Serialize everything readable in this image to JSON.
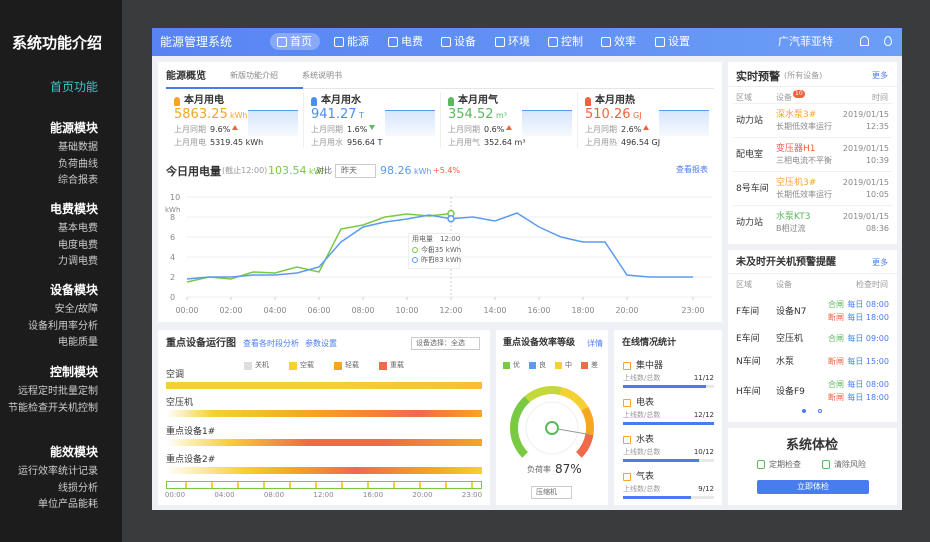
{
  "sidebar": {
    "title": "系统功能介绍",
    "home": "首页功能",
    "groups": [
      {
        "title": "能源模块",
        "items": [
          "基础数据",
          "负荷曲线",
          "综合报表"
        ]
      },
      {
        "title": "电费模块",
        "items": [
          "基本电费",
          "电度电费",
          "力调电费"
        ]
      },
      {
        "title": "设备模块",
        "items": [
          "安全/故障",
          "设备利用率分析",
          "电能质量"
        ]
      },
      {
        "title": "控制模块",
        "items": [
          "远程定时批量定制",
          "节能检查开关机控制"
        ]
      },
      {
        "title": "能效模块",
        "items": [
          "运行效率统计记录",
          "线损分析",
          "单位产品能耗"
        ]
      }
    ]
  },
  "topbar": {
    "app": "能源管理系统",
    "nav": [
      "首页",
      "能源",
      "电费",
      "设备",
      "环境",
      "控制",
      "效率",
      "设置"
    ],
    "company": "广汽菲亚特"
  },
  "overview": {
    "tabs": [
      "能源概览",
      "新版功能介绍",
      "系统说明书"
    ],
    "cards": [
      {
        "title": "本月用电",
        "value": "5863.25",
        "unit": "kWh",
        "cmp_label": "上月同期",
        "cmp": "9.6%",
        "trend": "up",
        "last_label": "上月用电",
        "last": "5319.45 kWh",
        "color": "#f5a623"
      },
      {
        "title": "本月用水",
        "value": "941.27",
        "unit": "T",
        "cmp_label": "上月同期",
        "cmp": "1.6%",
        "trend": "down",
        "last_label": "上月用水",
        "last": "956.64 T",
        "color": "#4a8ff0"
      },
      {
        "title": "本月用气",
        "value": "354.52",
        "unit": "m³",
        "cmp_label": "上月同期",
        "cmp": "0.6%",
        "trend": "up",
        "last_label": "上月用气",
        "last": "352.64 m³",
        "color": "#5cb85c"
      },
      {
        "title": "本月用热",
        "value": "510.26",
        "unit": "GJ",
        "cmp_label": "上月同期",
        "cmp": "2.6%",
        "trend": "up",
        "last_label": "上月用热",
        "last": "496.54 GJ",
        "color": "#f0623e"
      }
    ]
  },
  "chart_data": {
    "type": "line",
    "title": "今日用电量",
    "subtitle": "(截止12:00)",
    "today_total": "103.54",
    "today_unit": "kWh",
    "compare": "对比",
    "compare_select": "昨天",
    "yesterday_total": "98.26",
    "yesterday_unit": "kWh",
    "change": "+5.4%",
    "link": "查看报表",
    "y_label": "kWh",
    "x": [
      0,
      1,
      2,
      3,
      4,
      5,
      6,
      7,
      8,
      9,
      10,
      11,
      12,
      13,
      14,
      15,
      16,
      17,
      18,
      19,
      20,
      21,
      22,
      23
    ],
    "xlim": [
      0,
      23
    ],
    "xticks": [
      {
        "value": 0,
        "label": "00:00"
      },
      {
        "value": 2,
        "label": "02:00"
      },
      {
        "value": 4,
        "label": "04:00"
      },
      {
        "value": 6,
        "label": "06:00"
      },
      {
        "value": 8,
        "label": "08:00"
      },
      {
        "value": 10,
        "label": "10:00"
      },
      {
        "value": 12,
        "label": "12:00"
      },
      {
        "value": 14,
        "label": "14:00"
      },
      {
        "value": 16,
        "label": "16:00"
      },
      {
        "value": 18,
        "label": "18:00"
      },
      {
        "value": 20,
        "label": "20:00"
      },
      {
        "value": 23,
        "label": "23:00"
      }
    ],
    "ylim": [
      0,
      10
    ],
    "yticks": [
      0,
      2,
      4,
      6,
      8,
      10
    ],
    "grid": true,
    "series": [
      {
        "name": "今日",
        "color": "#7ac943",
        "values": [
          1.5,
          2.0,
          1.8,
          2.5,
          2.4,
          3.0,
          2.5,
          6.8,
          7.2,
          8.0,
          8.3,
          8.1,
          8.35,
          null,
          null,
          null,
          null,
          null,
          null,
          null,
          null,
          null,
          null,
          null
        ]
      },
      {
        "name": "昨日",
        "color": "#5b9bef",
        "values": [
          1.8,
          2.0,
          2.0,
          2.2,
          2.2,
          2.4,
          3.0,
          5.5,
          7.0,
          7.5,
          7.8,
          8.2,
          7.83,
          8.0,
          7.6,
          8.4,
          7.0,
          6.0,
          5.5,
          5.5,
          2.2,
          2.0,
          2.0,
          2.0
        ]
      }
    ],
    "tooltip": {
      "title": "用电量",
      "time": "12:00",
      "rows": [
        {
          "name": "今日",
          "value": "8.35 kWh"
        },
        {
          "name": "昨日",
          "value": "7.83 kWh"
        }
      ]
    }
  },
  "alerts": {
    "title": "实时预警",
    "scope": "(所有设备)",
    "more": "更多",
    "badge": "10",
    "columns": [
      "区域",
      "设备",
      "时间"
    ],
    "rows": [
      {
        "area": "动力站",
        "device": "深水泵3#",
        "issue": "长期低效率运行",
        "date": "2019/01/15",
        "time": "12:35",
        "color": "#f5a623"
      },
      {
        "area": "配电室",
        "device": "变压器H1",
        "issue": "三相电流不平衡",
        "date": "2019/01/15",
        "time": "10:39",
        "color": "#f0623e"
      },
      {
        "area": "8号车间",
        "device": "空压机3#",
        "issue": "长期低效率运行",
        "date": "2019/01/15",
        "time": "10:05",
        "color": "#f5a623"
      },
      {
        "area": "动力站",
        "device": "水泵KT3",
        "issue": "B相过流",
        "date": "2019/01/15",
        "time": "08:36",
        "color": "#5cb85c"
      }
    ]
  },
  "switch": {
    "title": "未及时开关机预警提醒",
    "more": "更多",
    "columns": [
      "区域",
      "设备",
      "检查时间"
    ],
    "rows": [
      {
        "area": "F车间",
        "device": "设备N7",
        "checks": [
          {
            "action": "合闸",
            "time": "每日 08:00",
            "color": "#5cb85c"
          },
          {
            "action": "断闸",
            "time": "每日 18:00",
            "color": "#f0623e"
          }
        ]
      },
      {
        "area": "E车间",
        "device": "空压机",
        "checks": [
          {
            "action": "合闸",
            "time": "每日 09:00",
            "color": "#5cb85c"
          }
        ]
      },
      {
        "area": "N车间",
        "device": "水泵",
        "checks": [
          {
            "action": "断闸",
            "time": "每日 15:00",
            "color": "#f0623e"
          }
        ]
      },
      {
        "area": "H车间",
        "device": "设备F9",
        "checks": [
          {
            "action": "合闸",
            "time": "每日 08:00",
            "color": "#5cb85c"
          },
          {
            "action": "断闸",
            "time": "每日 18:00",
            "color": "#f0623e"
          }
        ]
      }
    ]
  },
  "checkup": {
    "title": "系统体检",
    "items": [
      "定期检查",
      "清除风险"
    ],
    "button": "立即体检"
  },
  "run": {
    "title": "重点设备运行图",
    "links": [
      "查看各时段分析",
      "参数设置"
    ],
    "select": "设备选择：全选",
    "legend": [
      {
        "name": "关机",
        "color": "#dddddd"
      },
      {
        "name": "空载",
        "color": "#f5d033"
      },
      {
        "name": "轻载",
        "color": "#f5a623"
      },
      {
        "name": "重载",
        "color": "#f06a4a"
      }
    ],
    "devices": [
      "空调",
      "空压机",
      "重点设备1#",
      "重点设备2#"
    ],
    "ticks": [
      "00:00",
      "04:00",
      "08:00",
      "12:00",
      "16:00",
      "20:00",
      "23:00"
    ]
  },
  "efficiency": {
    "title": "重点设备效率等级",
    "link": "详情",
    "legend": [
      {
        "name": "优",
        "color": "#7ac943"
      },
      {
        "name": "良",
        "color": "#5b9bef"
      },
      {
        "name": "中",
        "color": "#f5d033"
      },
      {
        "name": "差",
        "color": "#f06a4a"
      }
    ],
    "load_label": "负荷率",
    "load": 87,
    "load_value_label": "87%",
    "select": "压缩机"
  },
  "online": {
    "title": "在线情况统计",
    "label": "上线数/总数",
    "meters": [
      {
        "name": "集中器",
        "online": 11,
        "total": 12,
        "value_label": "11/12"
      },
      {
        "name": "电表",
        "online": 12,
        "total": 12,
        "value_label": "12/12"
      },
      {
        "name": "水表",
        "online": 10,
        "total": 12,
        "value_label": "10/12"
      },
      {
        "name": "气表",
        "online": 9,
        "total": 12,
        "value_label": "9/12"
      }
    ]
  }
}
